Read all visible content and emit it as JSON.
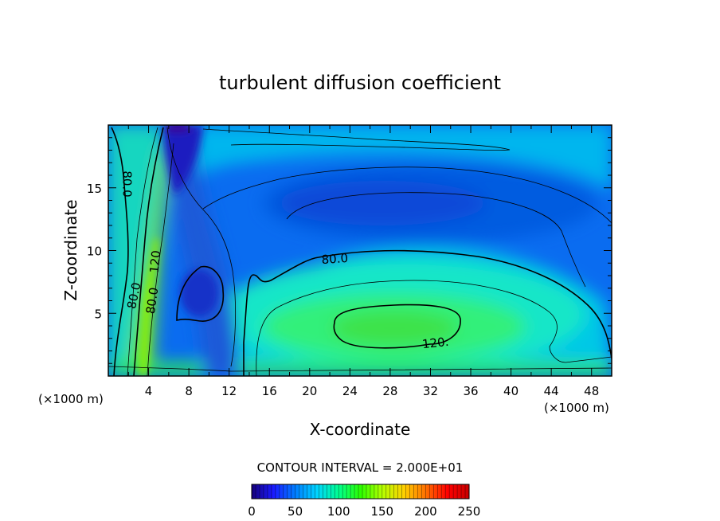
{
  "chart_data": {
    "type": "heatmap",
    "subtype": "filled-contour",
    "title": "turbulent diffusion coefficient",
    "xlabel": "X-coordinate",
    "ylabel": "Z-coordinate",
    "x_unit_left": "(×1000 m)",
    "x_unit_right": "(×1000 m)",
    "xlim": [
      0,
      50
    ],
    "ylim": [
      0,
      20
    ],
    "x_ticks": [
      "4",
      "8",
      "12",
      "16",
      "20",
      "24",
      "28",
      "32",
      "36",
      "40",
      "44",
      "48"
    ],
    "y_ticks": [
      "5",
      "10",
      "15"
    ],
    "contour_interval_text": "CONTOUR INTERVAL = 2.000E+01",
    "contour_labels": [
      {
        "text": "80.0",
        "x": 22.5,
        "z": 9.3,
        "angle": -4
      },
      {
        "text": "120.",
        "x": 32.5,
        "z": 2.6,
        "angle": -6
      },
      {
        "text": "80.0",
        "x": 1.8,
        "z": 15.3,
        "angle": 90
      },
      {
        "text": "80.0",
        "x": 2.6,
        "z": 6.4,
        "angle": -78
      },
      {
        "text": "80.0",
        "x": 4.4,
        "z": 6.0,
        "angle": -82
      },
      {
        "text": "120",
        "x": 4.7,
        "z": 9.1,
        "angle": -84
      }
    ],
    "field_features": [
      {
        "kind": "maximum",
        "value": 125,
        "x": 28,
        "z": 3.7
      },
      {
        "kind": "minimum",
        "value": 10,
        "x": 6.5,
        "z": 19.5
      },
      {
        "kind": "minimum",
        "value": 30,
        "x": 9.5,
        "z": 6.0
      },
      {
        "kind": "minimum",
        "value": 40,
        "x": 28,
        "z": 13.0
      }
    ],
    "colorbar": {
      "min": 0,
      "max": 250,
      "ticks": [
        "0",
        "50",
        "100",
        "150",
        "200",
        "250"
      ],
      "colors": [
        "#15007a",
        "#1a1aff",
        "#007dff",
        "#00d4ff",
        "#00ff90",
        "#2bff00",
        "#b4ff00",
        "#ffd000",
        "#ff7000",
        "#ff0000",
        "#c80000"
      ]
    }
  }
}
